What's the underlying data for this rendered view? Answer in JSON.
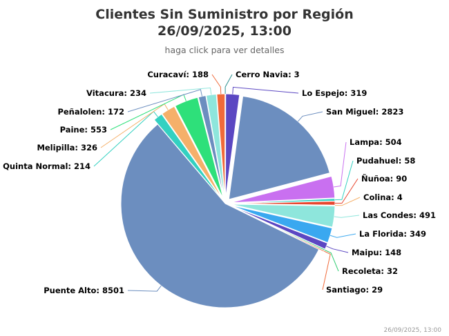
{
  "chart_data": {
    "type": "pie",
    "title": "Clientes Sin Suministro por Región",
    "title_line2": "26/09/2025, 13:00",
    "subtitle": "haga click para ver detalles",
    "credit": "26/09/2025, 13:00",
    "slices": [
      {
        "name": "Cerro Navia",
        "value": 3,
        "color": "#2b908f"
      },
      {
        "name": "Lo Espejo",
        "value": 319,
        "color": "#5b47c2"
      },
      {
        "name": "San Miguel",
        "value": 2823,
        "color": "#6c8ebf"
      },
      {
        "name": "Lampa",
        "value": 504,
        "color": "#c970f0"
      },
      {
        "name": "Pudahuel",
        "value": 58,
        "color": "#33d1c1"
      },
      {
        "name": "Ñuñoa",
        "value": 90,
        "color": "#e8462f"
      },
      {
        "name": "Colina",
        "value": 4,
        "color": "#f5b06a"
      },
      {
        "name": "Las Condes",
        "value": 491,
        "color": "#8ee6dc"
      },
      {
        "name": "La Florida",
        "value": 349,
        "color": "#3aa8f0"
      },
      {
        "name": "Maipu",
        "value": 148,
        "color": "#5b47c2"
      },
      {
        "name": "Recoleta",
        "value": 32,
        "color": "#2ecc71"
      },
      {
        "name": "Santiago",
        "value": 29,
        "color": "#f06a3a"
      },
      {
        "name": "Puente Alto",
        "value": 8501,
        "color": "#6c8ebf"
      },
      {
        "name": "Quinta Normal",
        "value": 214,
        "color": "#33d1c1"
      },
      {
        "name": "Melipilla",
        "value": 326,
        "color": "#f5b06a"
      },
      {
        "name": "Paine",
        "value": 553,
        "color": "#2ee07a"
      },
      {
        "name": "Peñalolen",
        "value": 172,
        "color": "#6c8ebf"
      },
      {
        "name": "Vitacura",
        "value": 234,
        "color": "#8ee6dc"
      },
      {
        "name": "Curacaví",
        "value": 188,
        "color": "#f06a3a"
      }
    ],
    "labels": [
      "Cerro Navia: 3",
      "Lo Espejo: 319",
      "San Miguel: 2823",
      "Lampa: 504",
      "Pudahuel: 58",
      "Ñuñoa: 90",
      "Colina: 4",
      "Las Condes: 491",
      "La Florida: 349",
      "Maipu: 148",
      "Recoleta: 32",
      "Santiago: 29",
      "Puente Alto: 8501",
      "Quinta Normal: 214",
      "Melipilla: 326",
      "Paine: 553",
      "Peñalolen: 172",
      "Vitacura: 234",
      "Curacaví: 188"
    ]
  }
}
